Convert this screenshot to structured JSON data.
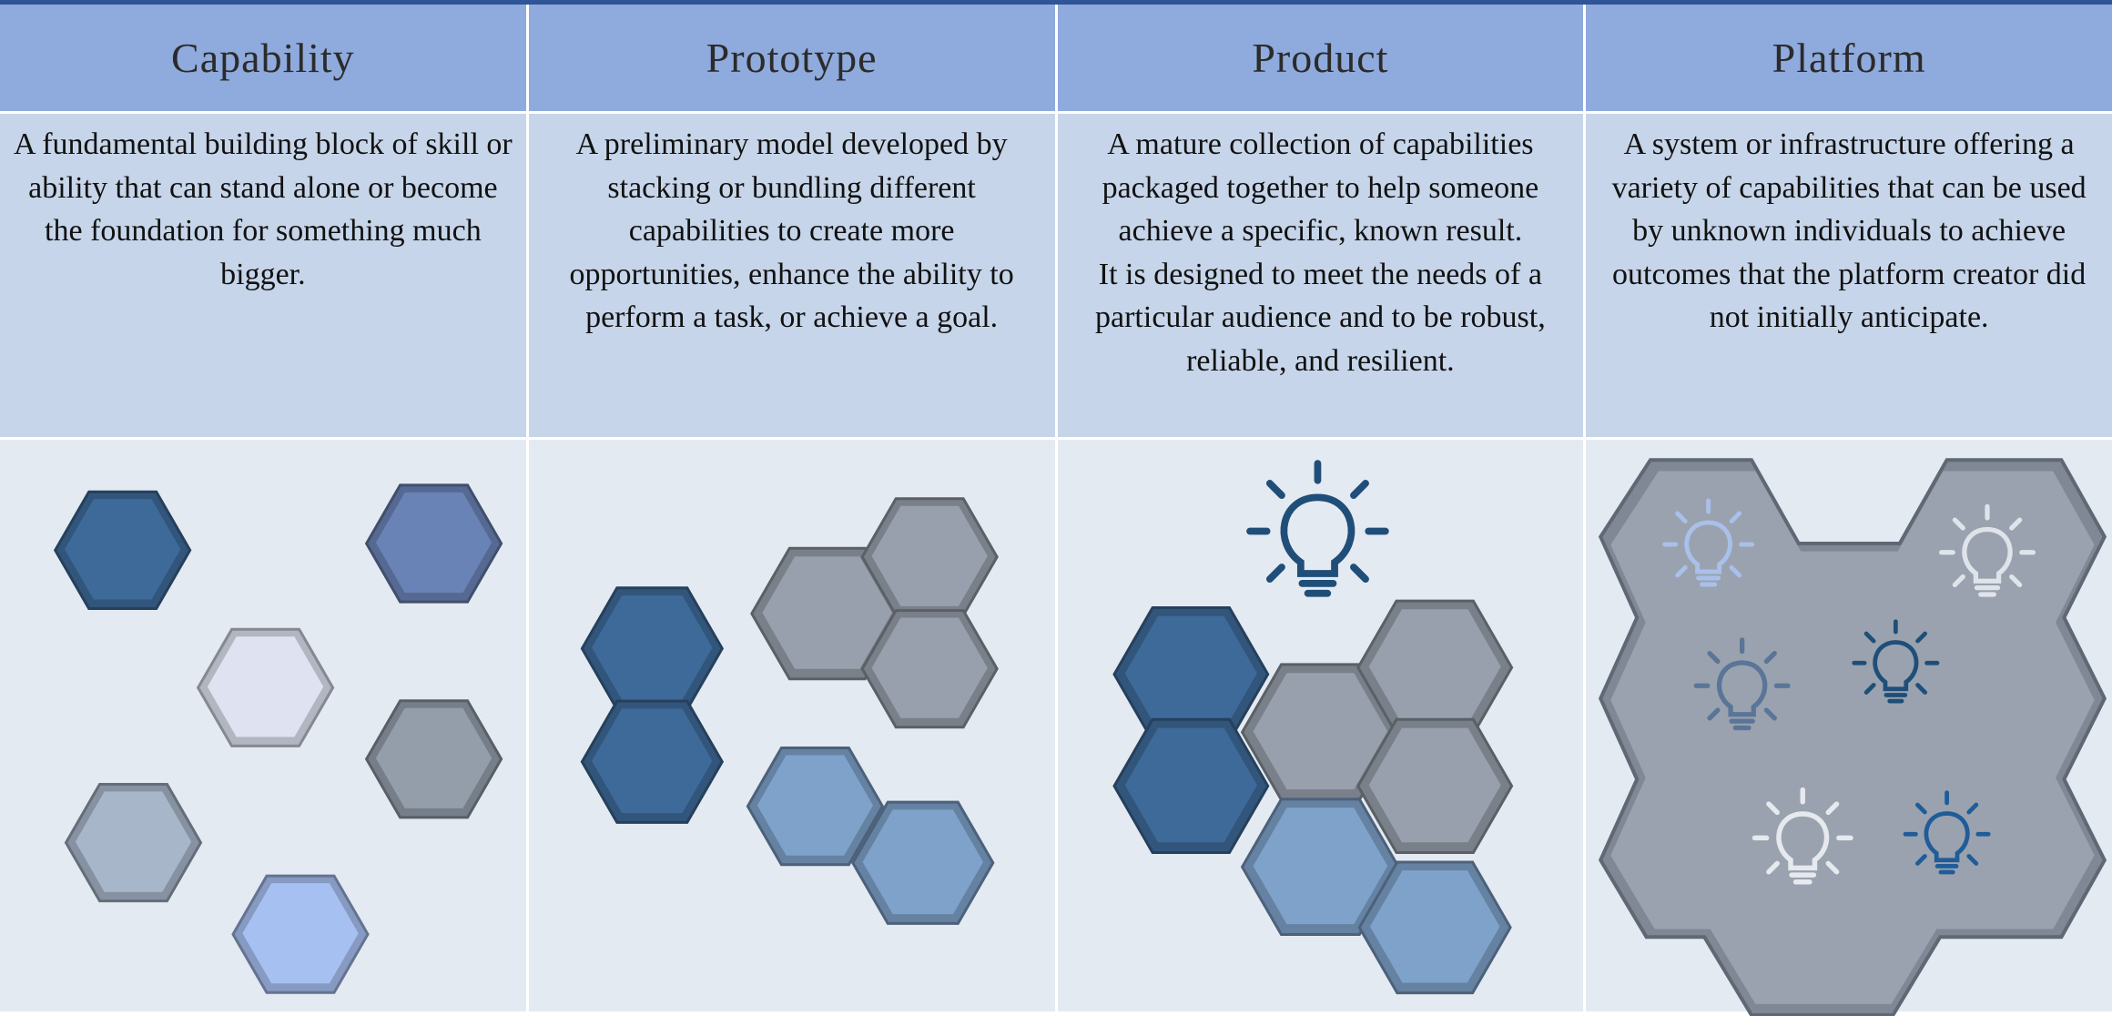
{
  "columns": [
    {
      "title": "Capability",
      "paragraphs": [
        "A fundamental building block of skill or ability that can stand alone or become the foundation for something much bigger."
      ]
    },
    {
      "title": "Prototype",
      "paragraphs": [
        "A preliminary model developed by stacking or bundling different capabilities to create more opportunities, enhance the ability to perform a task, or achieve a goal."
      ]
    },
    {
      "title": "Product",
      "paragraphs": [
        "A mature collection of capabilities packaged together to help someone achieve a specific, known result.",
        "It is designed to meet the needs of a particular audience and to be robust, reliable, and resilient."
      ]
    },
    {
      "title": "Platform",
      "paragraphs": [
        "A system or infrastructure offering a variety of capabilities that can be used by unknown individuals to achieve outcomes that the platform creator did not initially anticipate."
      ]
    }
  ]
}
